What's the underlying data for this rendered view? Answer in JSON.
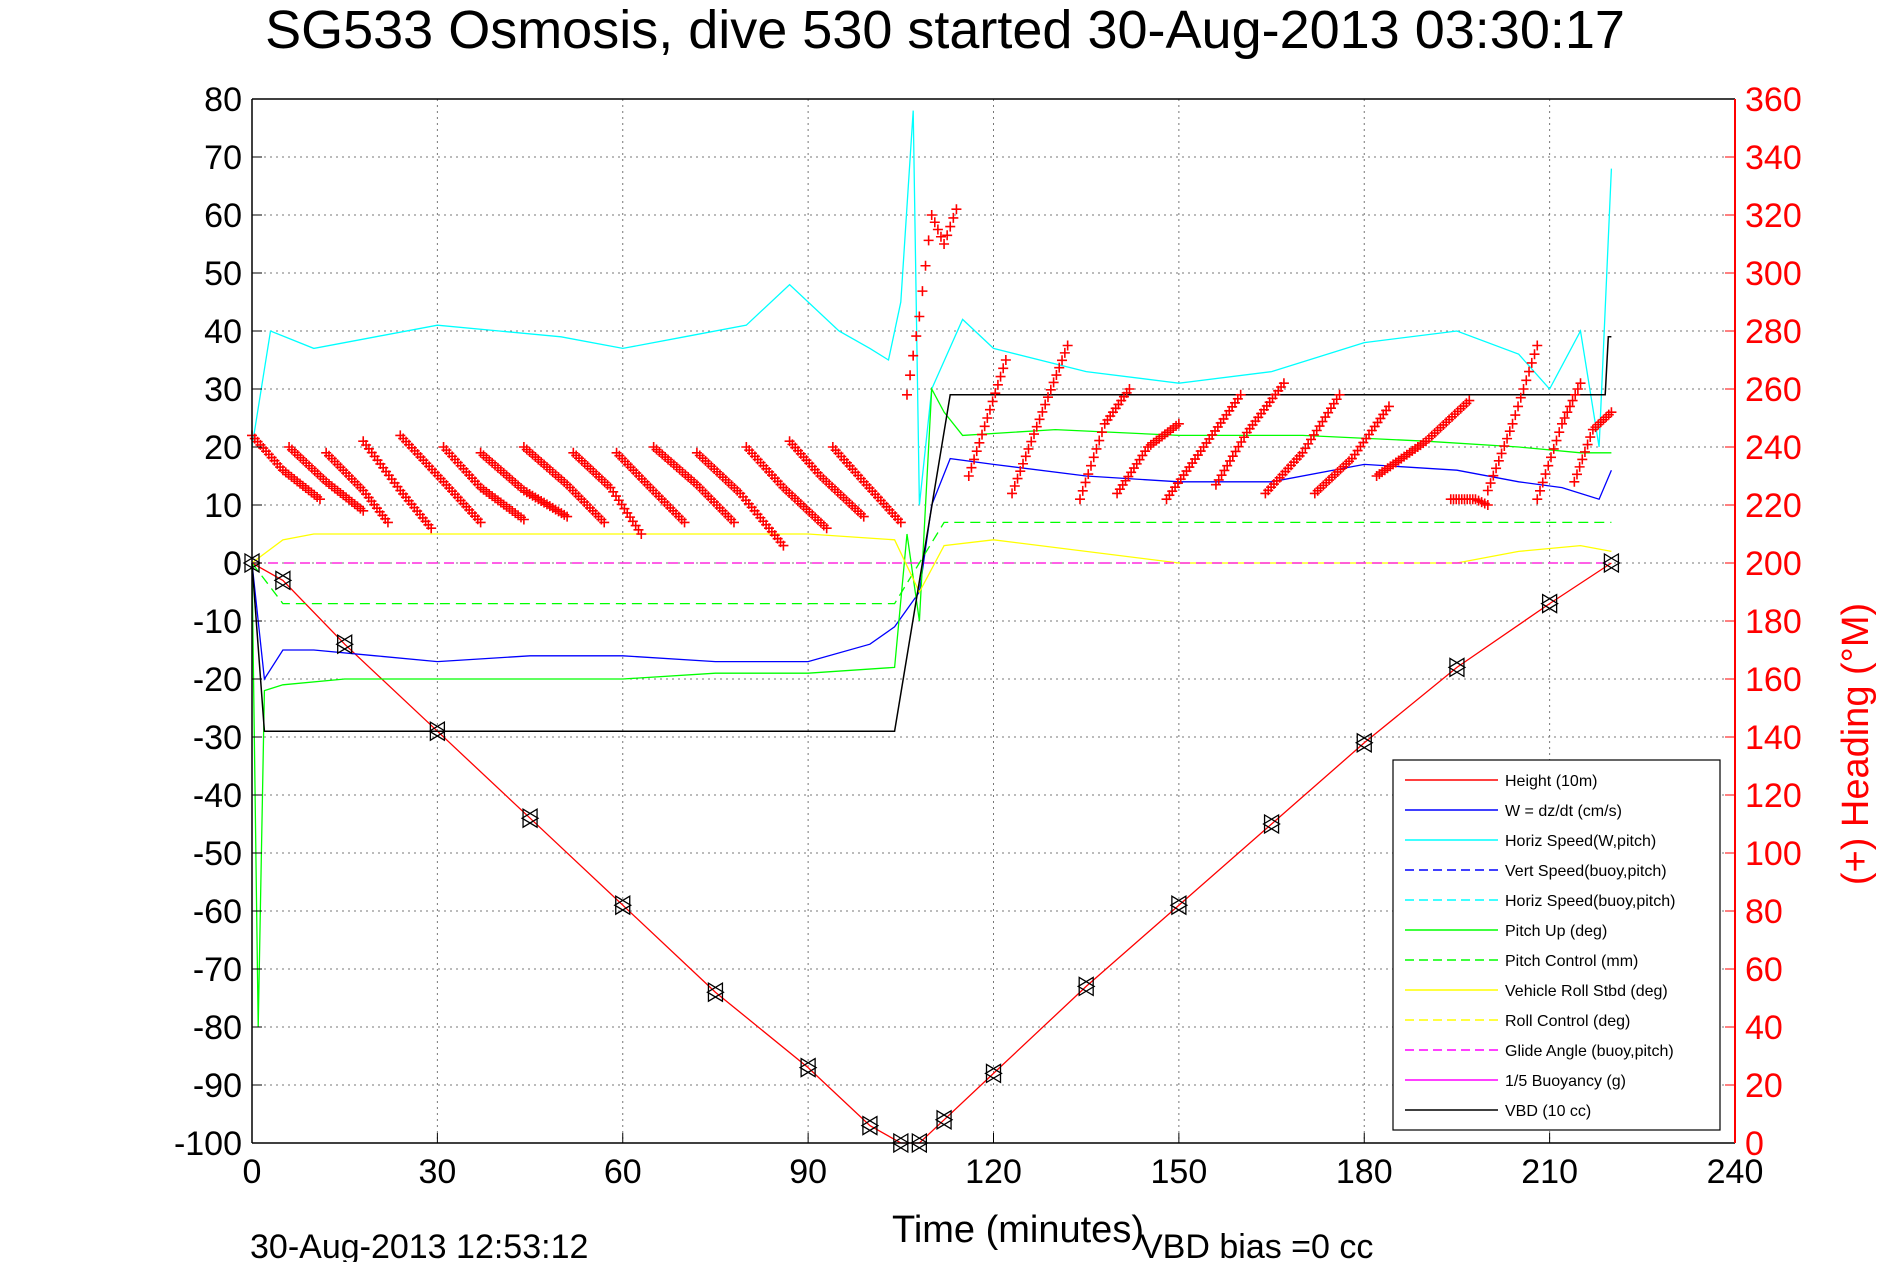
{
  "chart_data": {
    "type": "line",
    "title": "SG533 Osmosis, dive 530 started 30-Aug-2013 03:30:17",
    "xlabel": "Time (minutes)",
    "ylabel_right": "(+) Heading (°M)",
    "xlim": [
      0,
      240
    ],
    "ylim": [
      -100,
      80
    ],
    "ylim_right": [
      0,
      360
    ],
    "x_ticks": [
      "0",
      "30",
      "60",
      "90",
      "120",
      "150",
      "180",
      "210",
      "240"
    ],
    "y_ticks": [
      "80",
      "70",
      "60",
      "50",
      "40",
      "30",
      "20",
      "10",
      "0",
      "-10",
      "-20",
      "-30",
      "-40",
      "-50",
      "-60",
      "-70",
      "-80",
      "-90",
      "-100"
    ],
    "y_right_ticks": [
      "360",
      "340",
      "320",
      "300",
      "280",
      "260",
      "240",
      "220",
      "200",
      "180",
      "160",
      "140",
      "120",
      "100",
      "80",
      "60",
      "40",
      "20",
      "0"
    ],
    "grid": true,
    "legend_position": "bottom-right",
    "colors": {
      "height": "#ff0000",
      "w": "#0000ff",
      "horiz_speed": "#00ffff",
      "pitch": "#00ff00",
      "roll": "#ffff00",
      "glide": "#ff00ff",
      "vbd": "#000000",
      "heading": "#ff0000",
      "right_axis": "#ff0000"
    },
    "series": [
      {
        "name": "Height (10m)",
        "color": "#ff0000",
        "style": "solid",
        "x": [
          0,
          5,
          15,
          30,
          45,
          60,
          75,
          90,
          100,
          105,
          108,
          112,
          120,
          135,
          150,
          165,
          180,
          195,
          210,
          220
        ],
        "y": [
          0,
          -3,
          -14,
          -29,
          -44,
          -59,
          -74,
          -87,
          -97,
          -100,
          -100,
          -96,
          -88,
          -73,
          -59,
          -45,
          -31,
          -18,
          -7,
          0
        ]
      },
      {
        "name": "W = dz/dt (cm/s)",
        "color": "#0000ff",
        "style": "solid",
        "x": [
          0,
          2,
          5,
          10,
          20,
          30,
          45,
          60,
          75,
          90,
          100,
          104,
          108,
          110,
          113,
          120,
          135,
          150,
          165,
          180,
          195,
          205,
          212,
          218,
          220
        ],
        "y": [
          0,
          -20,
          -15,
          -15,
          -16,
          -17,
          -16,
          -16,
          -17,
          -17,
          -14,
          -11,
          -5,
          10,
          18,
          17,
          15,
          14,
          14,
          17,
          16,
          14,
          13,
          11,
          16
        ]
      },
      {
        "name": "Horiz Speed(W,pitch)",
        "color": "#00ffff",
        "style": "solid",
        "x": [
          0,
          3,
          10,
          20,
          30,
          40,
          50,
          60,
          70,
          80,
          87,
          95,
          100,
          103,
          105,
          107,
          108,
          110,
          115,
          120,
          135,
          150,
          165,
          180,
          195,
          205,
          210,
          215,
          218,
          220
        ],
        "y": [
          20,
          40,
          37,
          39,
          41,
          40,
          39,
          37,
          39,
          41,
          48,
          40,
          37,
          35,
          45,
          78,
          10,
          30,
          42,
          37,
          33,
          31,
          33,
          38,
          40,
          36,
          30,
          40,
          20,
          68
        ]
      },
      {
        "name": "Vert Speed(buoy,pitch)",
        "color": "#0000ff",
        "style": "dashed",
        "x": [],
        "y": []
      },
      {
        "name": "Horiz Speed(buoy,pitch)",
        "color": "#00ffff",
        "style": "dashed",
        "x": [],
        "y": []
      },
      {
        "name": "Pitch Up (deg)",
        "color": "#00ff00",
        "style": "solid",
        "x": [
          0,
          1,
          2,
          5,
          15,
          30,
          45,
          60,
          75,
          90,
          104,
          106,
          108,
          110,
          112,
          115,
          130,
          150,
          170,
          190,
          205,
          215,
          220
        ],
        "y": [
          0,
          -80,
          -22,
          -21,
          -20,
          -20,
          -20,
          -20,
          -19,
          -19,
          -18,
          5,
          -10,
          30,
          26,
          22,
          23,
          22,
          22,
          21,
          20,
          19,
          19
        ]
      },
      {
        "name": "Pitch Control (mm)",
        "color": "#00ff00",
        "style": "dashed",
        "x": [
          0,
          5,
          104,
          112,
          220
        ],
        "y": [
          0,
          -7,
          -7,
          7,
          7
        ]
      },
      {
        "name": "Vehicle Roll Stbd (deg)",
        "color": "#ffff00",
        "style": "solid",
        "x": [
          0,
          5,
          10,
          30,
          60,
          90,
          104,
          108,
          112,
          120,
          150,
          180,
          195,
          205,
          215,
          220
        ],
        "y": [
          0,
          4,
          5,
          5,
          5,
          5,
          4,
          -5,
          3,
          4,
          0,
          0,
          0,
          2,
          3,
          2
        ]
      },
      {
        "name": "Roll Control (deg)",
        "color": "#ffff00",
        "style": "dashed",
        "x": [
          0,
          220
        ],
        "y": [
          0,
          0
        ]
      },
      {
        "name": "Glide Angle (buoy,pitch)",
        "color": "#ff00ff",
        "style": "dashed",
        "x": [
          0,
          220
        ],
        "y": [
          0,
          0
        ]
      },
      {
        "name": "1/5 Buoyancy (g)",
        "color": "#ff00ff",
        "style": "solid",
        "x": [],
        "y": []
      },
      {
        "name": "VBD (10 cc)",
        "color": "#000000",
        "style": "solid",
        "x": [
          0,
          2,
          104,
          113,
          219,
          219.5,
          220
        ],
        "y": [
          0,
          -29,
          -29,
          29,
          29,
          39,
          39
        ]
      }
    ],
    "heading_segments": [
      [
        [
          0,
          244
        ],
        [
          5,
          232
        ],
        [
          11,
          222
        ]
      ],
      [
        [
          6,
          240
        ],
        [
          12,
          228
        ],
        [
          18,
          218
        ]
      ],
      [
        [
          12,
          238
        ],
        [
          18,
          225
        ],
        [
          22,
          214
        ]
      ],
      [
        [
          18,
          242
        ],
        [
          24,
          225
        ],
        [
          29,
          212
        ]
      ],
      [
        [
          24,
          244
        ],
        [
          31,
          228
        ],
        [
          37,
          214
        ]
      ],
      [
        [
          31,
          240
        ],
        [
          37,
          226
        ],
        [
          44,
          215
        ]
      ],
      [
        [
          37,
          238
        ],
        [
          44,
          225
        ],
        [
          51,
          216
        ]
      ],
      [
        [
          44,
          240
        ],
        [
          51,
          227
        ],
        [
          57,
          214
        ]
      ],
      [
        [
          52,
          238
        ],
        [
          58,
          226
        ],
        [
          63,
          210
        ]
      ],
      [
        [
          59,
          238
        ],
        [
          64,
          227
        ],
        [
          70,
          214
        ]
      ],
      [
        [
          65,
          240
        ],
        [
          72,
          227
        ],
        [
          78,
          214
        ]
      ],
      [
        [
          72,
          238
        ],
        [
          79,
          224
        ],
        [
          86,
          206
        ]
      ],
      [
        [
          80,
          240
        ],
        [
          86,
          226
        ],
        [
          93,
          212
        ]
      ],
      [
        [
          87,
          242
        ],
        [
          92,
          230
        ],
        [
          99,
          216
        ]
      ],
      [
        [
          94,
          240
        ],
        [
          99,
          228
        ],
        [
          105,
          214
        ]
      ],
      [
        [
          106,
          258
        ],
        [
          108,
          285
        ],
        [
          110,
          320
        ],
        [
          112,
          310
        ],
        [
          114,
          322
        ]
      ],
      [
        [
          116,
          230
        ],
        [
          119,
          250
        ],
        [
          122,
          270
        ]
      ],
      [
        [
          123,
          224
        ],
        [
          127,
          247
        ],
        [
          132,
          275
        ]
      ],
      [
        [
          134,
          222
        ],
        [
          138,
          248
        ],
        [
          142,
          260
        ]
      ],
      [
        [
          140,
          224
        ],
        [
          145,
          240
        ],
        [
          150,
          248
        ]
      ],
      [
        [
          148,
          222
        ],
        [
          154,
          240
        ],
        [
          160,
          258
        ]
      ],
      [
        [
          156,
          227
        ],
        [
          161,
          245
        ],
        [
          167,
          262
        ]
      ],
      [
        [
          164,
          224
        ],
        [
          170,
          238
        ],
        [
          176,
          258
        ]
      ],
      [
        [
          172,
          224
        ],
        [
          178,
          236
        ],
        [
          184,
          254
        ]
      ],
      [
        [
          182,
          230
        ],
        [
          190,
          242
        ],
        [
          197,
          256
        ]
      ],
      [
        [
          194,
          222
        ],
        [
          198,
          222
        ],
        [
          200,
          220
        ]
      ],
      [
        [
          200,
          225
        ],
        [
          204,
          248
        ],
        [
          208,
          275
        ]
      ],
      [
        [
          208,
          222
        ],
        [
          212,
          248
        ],
        [
          215,
          262
        ]
      ],
      [
        [
          214,
          228
        ],
        [
          217,
          246
        ],
        [
          220,
          252
        ]
      ]
    ]
  },
  "footer": {
    "timestamp": "30-Aug-2013 12:53:12",
    "vbd_bias": "VBD bias =0 cc"
  }
}
